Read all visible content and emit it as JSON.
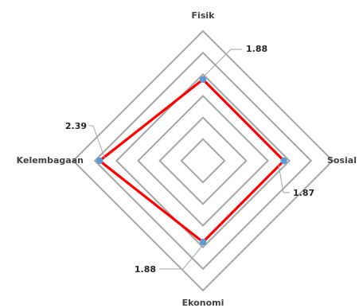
{
  "chart_data": {
    "type": "radar",
    "axes": [
      "Fisik",
      "Sosial",
      "Ekonomi",
      "Kelembagaan"
    ],
    "series": [
      {
        "values": [
          1.88,
          1.87,
          1.88,
          2.39
        ]
      }
    ],
    "data_labels": [
      "1.88",
      "1.87",
      "1.88",
      "2.39"
    ],
    "rlim": [
      0,
      3
    ],
    "grid_rings": 6,
    "legend": "none",
    "series_color": "#ff0000",
    "marker_color": "#5b9bd5",
    "grid_color": "#a6a6a6"
  }
}
